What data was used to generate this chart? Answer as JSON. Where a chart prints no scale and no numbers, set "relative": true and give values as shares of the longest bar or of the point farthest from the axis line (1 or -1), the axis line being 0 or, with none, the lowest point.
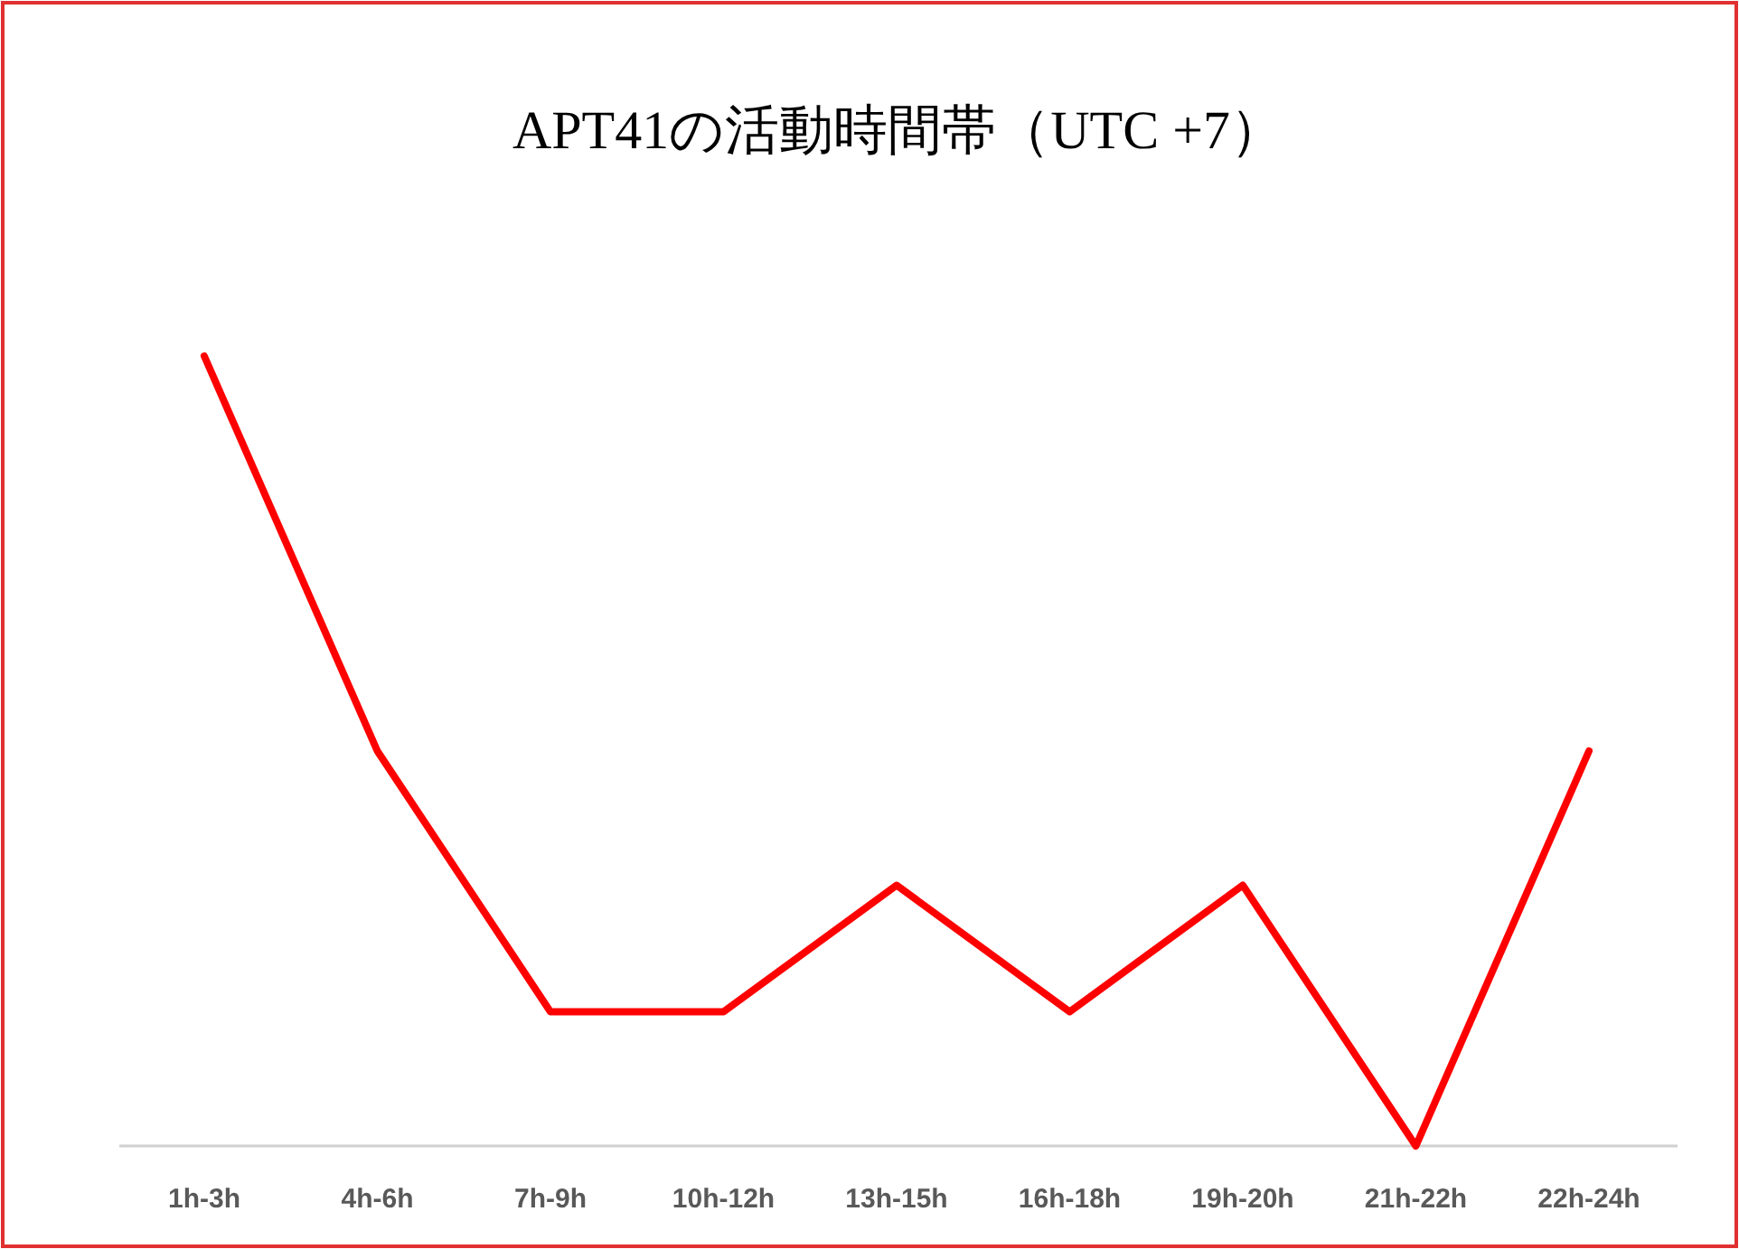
{
  "chart_data": {
    "type": "line",
    "title": "APT41の活動時間帯（UTC +7）",
    "relative": true,
    "categories": [
      "1h-3h",
      "4h-6h",
      "7h-9h",
      "10h-12h",
      "13h-15h",
      "16h-18h",
      "19h-20h",
      "21h-22h",
      "22h-24h"
    ],
    "series": [
      {
        "color": "#ff0000",
        "values": [
          1,
          0.5,
          0.17,
          0.17,
          0.33,
          0.17,
          0.33,
          0,
          0.5
        ]
      }
    ]
  }
}
